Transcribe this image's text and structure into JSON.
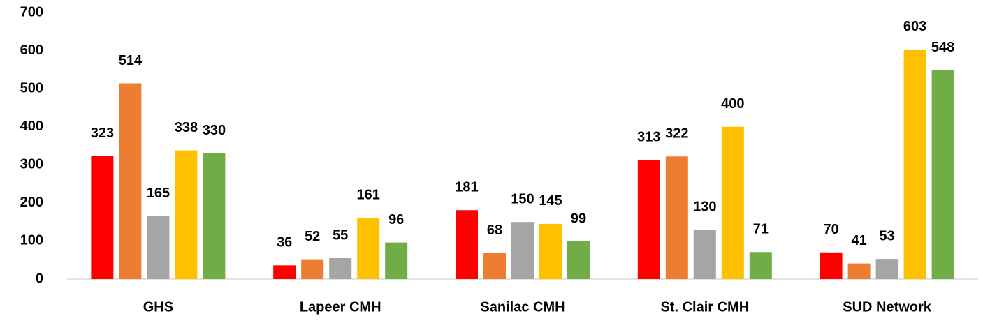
{
  "chart_data": {
    "type": "bar",
    "categories": [
      "GHS",
      "Lapeer CMH",
      "Sanilac CMH",
      "St. Clair CMH",
      "SUD Network"
    ],
    "series": [
      {
        "color": "#ff0000",
        "values": [
          323,
          36,
          181,
          313,
          70
        ]
      },
      {
        "color": "#ed7d31",
        "values": [
          514,
          52,
          68,
          322,
          41
        ]
      },
      {
        "color": "#a5a5a5",
        "values": [
          165,
          55,
          150,
          130,
          53
        ]
      },
      {
        "color": "#ffc000",
        "values": [
          338,
          161,
          145,
          400,
          603
        ]
      },
      {
        "color": "#70ad47",
        "values": [
          330,
          96,
          99,
          71,
          548
        ]
      }
    ],
    "ylim": [
      0,
      700
    ],
    "yticks": [
      0,
      100,
      200,
      300,
      400,
      500,
      600,
      700
    ],
    "grid": false
  }
}
